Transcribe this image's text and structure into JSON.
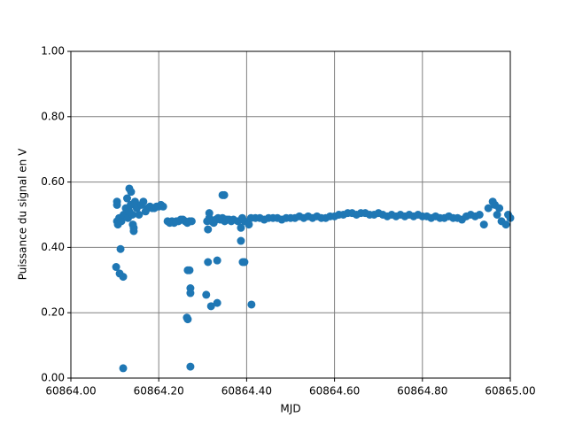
{
  "chart_data": {
    "type": "scatter",
    "x_label": "MJD",
    "y_label": "Puissance du signal en V",
    "xlim": [
      60864.0,
      60865.0
    ],
    "ylim": [
      0,
      1
    ],
    "xticks": [
      {
        "value": 60864.0,
        "label": "60864.00"
      },
      {
        "value": 60864.2,
        "label": "60864.20"
      },
      {
        "value": 60864.4,
        "label": "60864.40"
      },
      {
        "value": 60864.6,
        "label": "60864.60"
      },
      {
        "value": 60864.8,
        "label": "60864.80"
      },
      {
        "value": 60865.0,
        "label": "60865.00"
      }
    ],
    "yticks": [
      {
        "value": 0,
        "label": "0.00"
      },
      {
        "value": 0.2,
        "label": "0.20"
      },
      {
        "value": 0.4,
        "label": "0.40"
      },
      {
        "value": 0.6,
        "label": "0.60"
      },
      {
        "value": 0.8,
        "label": "0.80"
      },
      {
        "value": 1,
        "label": "1.00"
      }
    ],
    "grid": true,
    "color": "#1f77b4",
    "x": [
      60864.105,
      60864.105,
      60864.103,
      60864.111,
      60864.113,
      60864.119,
      60864.119,
      60864.133,
      60864.137,
      60864.143,
      60864.141,
      60864.264,
      60864.266,
      60864.266,
      60864.27,
      60864.272,
      60864.272,
      60864.272,
      60864.308,
      60864.312,
      60864.312,
      60864.315,
      60864.319,
      60864.333,
      60864.333,
      60864.345,
      60864.349,
      60864.387,
      60864.391,
      60864.395,
      60864.411,
      60864.387,
      60864.105,
      60864.107,
      60864.11,
      60864.115,
      60864.12,
      60864.125,
      60864.128,
      60864.13,
      60864.133,
      60864.136,
      60864.14,
      60864.143,
      60864.146,
      60864.15,
      60864.155,
      60864.16,
      60864.165,
      60864.17,
      60864.175,
      60864.18,
      60864.185,
      60864.19,
      60864.195,
      60864.2,
      60864.205,
      60864.21,
      60864.22,
      60864.225,
      60864.23,
      60864.235,
      60864.24,
      60864.245,
      60864.25,
      60864.255,
      60864.26,
      60864.265,
      60864.27,
      60864.275,
      60864.31,
      60864.315,
      60864.32,
      60864.325,
      60864.33,
      60864.335,
      60864.34,
      60864.345,
      60864.35,
      60864.355,
      60864.36,
      60864.365,
      60864.37,
      60864.38,
      60864.39,
      60864.395,
      60864.405,
      60864.41,
      60864.42,
      60864.43,
      60864.44,
      60864.45,
      60864.46,
      60864.47,
      60864.48,
      60864.49,
      60864.5,
      60864.51,
      60864.52,
      60864.53,
      60864.54,
      60864.55,
      60864.56,
      60864.57,
      60864.58,
      60864.59,
      60864.6,
      60864.61,
      60864.62,
      60864.63,
      60864.64,
      60864.65,
      60864.66,
      60864.67,
      60864.68,
      60864.69,
      60864.7,
      60864.71,
      60864.72,
      60864.73,
      60864.74,
      60864.75,
      60864.76,
      60864.77,
      60864.78,
      60864.79,
      60864.8,
      60864.81,
      60864.82,
      60864.83,
      60864.84,
      60864.85,
      60864.86,
      60864.87,
      60864.88,
      60864.89,
      60864.9,
      60864.91,
      60864.92,
      60864.93,
      60864.94,
      60864.95,
      60864.96,
      60864.965,
      60864.97,
      60864.975,
      60864.98,
      60864.99,
      60864.995,
      60865.0
    ],
    "values": [
      0.54,
      0.53,
      0.34,
      0.32,
      0.395,
      0.31,
      0.03,
      0.58,
      0.57,
      0.45,
      0.47,
      0.185,
      0.18,
      0.33,
      0.33,
      0.275,
      0.26,
      0.035,
      0.255,
      0.355,
      0.455,
      0.505,
      0.22,
      0.23,
      0.36,
      0.56,
      0.56,
      0.42,
      0.355,
      0.355,
      0.225,
      0.46,
      0.48,
      0.47,
      0.49,
      0.48,
      0.5,
      0.52,
      0.55,
      0.49,
      0.51,
      0.53,
      0.5,
      0.46,
      0.54,
      0.52,
      0.5,
      0.53,
      0.54,
      0.51,
      0.52,
      0.525,
      0.52,
      0.52,
      0.525,
      0.525,
      0.53,
      0.525,
      0.48,
      0.475,
      0.48,
      0.475,
      0.48,
      0.48,
      0.485,
      0.485,
      0.48,
      0.475,
      0.48,
      0.48,
      0.48,
      0.49,
      0.48,
      0.475,
      0.485,
      0.49,
      0.485,
      0.49,
      0.48,
      0.485,
      0.485,
      0.48,
      0.485,
      0.48,
      0.49,
      0.48,
      0.47,
      0.49,
      0.49,
      0.49,
      0.485,
      0.49,
      0.49,
      0.49,
      0.485,
      0.49,
      0.49,
      0.49,
      0.495,
      0.49,
      0.495,
      0.49,
      0.495,
      0.49,
      0.49,
      0.495,
      0.495,
      0.5,
      0.5,
      0.505,
      0.505,
      0.5,
      0.505,
      0.505,
      0.5,
      0.5,
      0.505,
      0.5,
      0.495,
      0.5,
      0.495,
      0.5,
      0.495,
      0.5,
      0.495,
      0.5,
      0.495,
      0.495,
      0.49,
      0.495,
      0.49,
      0.49,
      0.495,
      0.49,
      0.49,
      0.485,
      0.495,
      0.5,
      0.495,
      0.5,
      0.47,
      0.52,
      0.54,
      0.53,
      0.5,
      0.52,
      0.48,
      0.47,
      0.5,
      0.49
    ]
  }
}
